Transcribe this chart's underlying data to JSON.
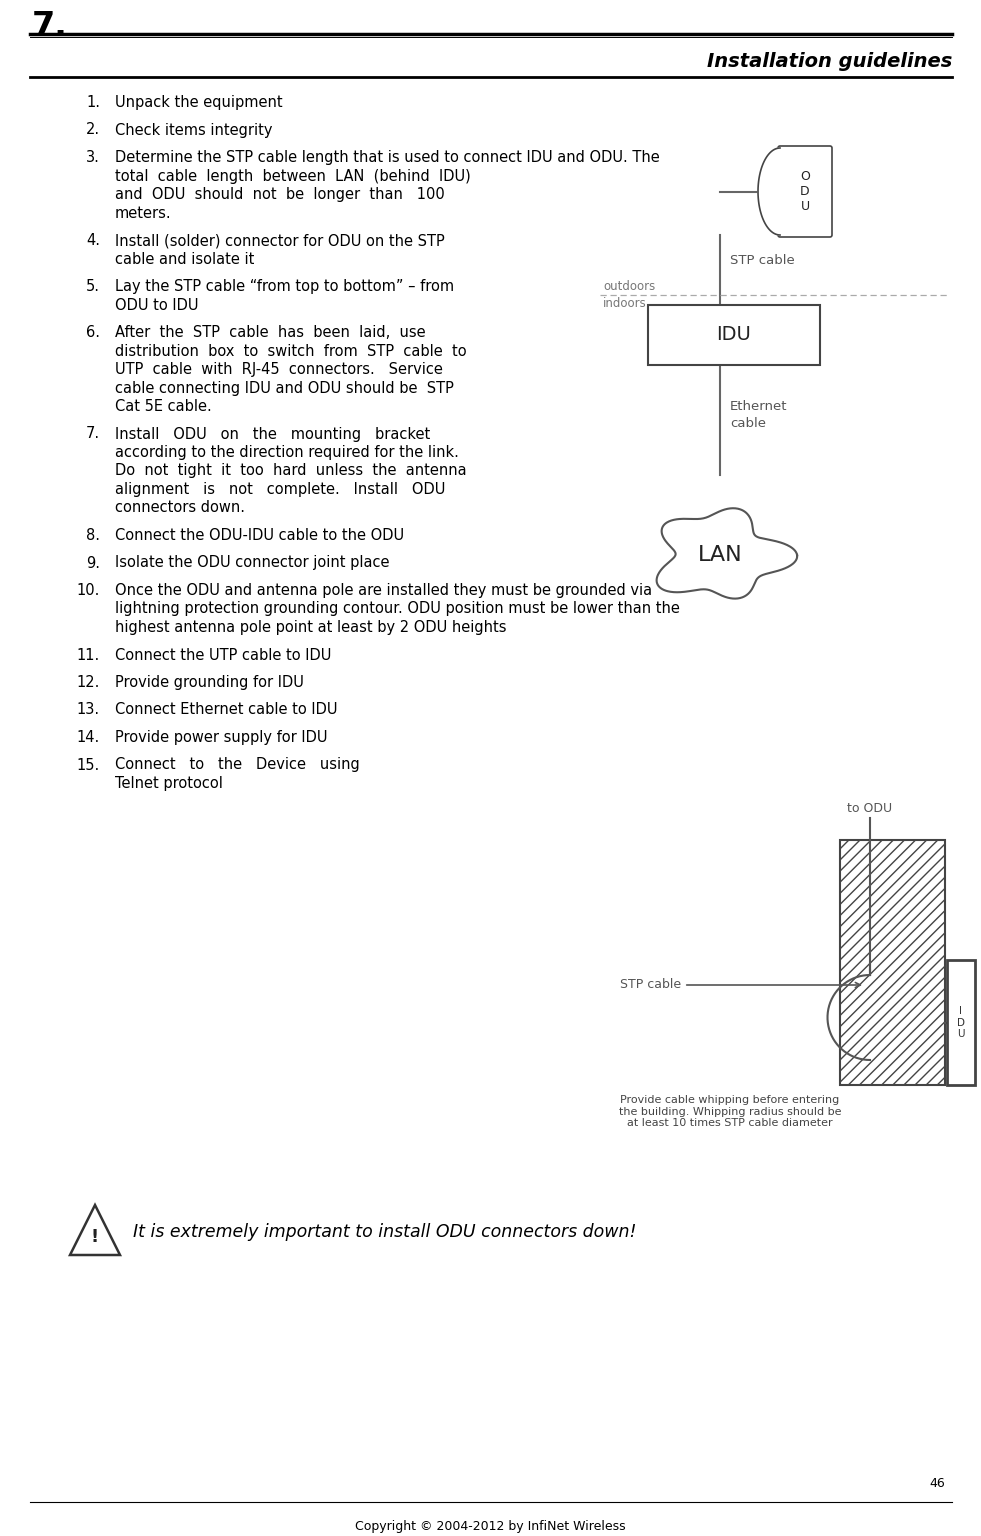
{
  "title_number": "7.",
  "section_title": "Installation guidelines",
  "copyright": "Copyright © 2004-2012 by InfiNet Wireless",
  "page_number": "46",
  "warning_text": "It is extremely important to install ODU connectors down!",
  "bg_color": "#ffffff",
  "text_color": "#000000",
  "line_color": "#000000",
  "gray_color": "#888888",
  "items": [
    {
      "num": "1.",
      "lines": [
        "Unpack the equipment"
      ]
    },
    {
      "num": "2.",
      "lines": [
        "Check items integrity"
      ]
    },
    {
      "num": "3.",
      "lines": [
        "Determine the STP cable length that is used to connect IDU and ODU. The",
        "total  cable  length  between  LAN  (behind  IDU)",
        "and  ODU  should  not  be  longer  than   100",
        "meters."
      ]
    },
    {
      "num": "4.",
      "lines": [
        "Install (solder) connector for ODU on the STP",
        "cable and isolate it"
      ]
    },
    {
      "num": "5.",
      "lines": [
        "Lay the STP cable “from top to bottom” – from",
        "ODU to IDU"
      ]
    },
    {
      "num": "6.",
      "lines": [
        "After  the  STP  cable  has  been  laid,  use",
        "distribution  box  to  switch  from  STP  cable  to",
        "UTP  cable  with  RJ-45  connectors.   Service",
        "cable connecting IDU and ODU should be  STP",
        "Cat 5E cable."
      ]
    },
    {
      "num": "7.",
      "lines": [
        "Install   ODU   on   the   mounting   bracket",
        "according to the direction required for the link.",
        "Do  not  tight  it  too  hard  unless  the  antenna",
        "alignment   is   not   complete.   Install   ODU",
        "connectors down."
      ]
    },
    {
      "num": "8.",
      "lines": [
        "Connect the ODU-IDU cable to the ODU"
      ]
    },
    {
      "num": "9.",
      "lines": [
        "Isolate the ODU connector joint place"
      ]
    },
    {
      "num": "10.",
      "lines": [
        "Once the ODU and antenna pole are installed they must be grounded via",
        "lightning protection grounding contour. ODU position must be lower than the",
        "highest antenna pole point at least by 2 ODU heights"
      ]
    },
    {
      "num": "11.",
      "lines": [
        "Connect the UTP cable to IDU"
      ]
    },
    {
      "num": "12.",
      "lines": [
        "Provide grounding for IDU"
      ]
    },
    {
      "num": "13.",
      "lines": [
        "Connect Ethernet cable to IDU"
      ]
    },
    {
      "num": "14.",
      "lines": [
        "Provide power supply for IDU"
      ]
    },
    {
      "num": "15.",
      "lines": [
        "Connect   to   the   Device   using",
        "Telnet protocol"
      ]
    }
  ]
}
